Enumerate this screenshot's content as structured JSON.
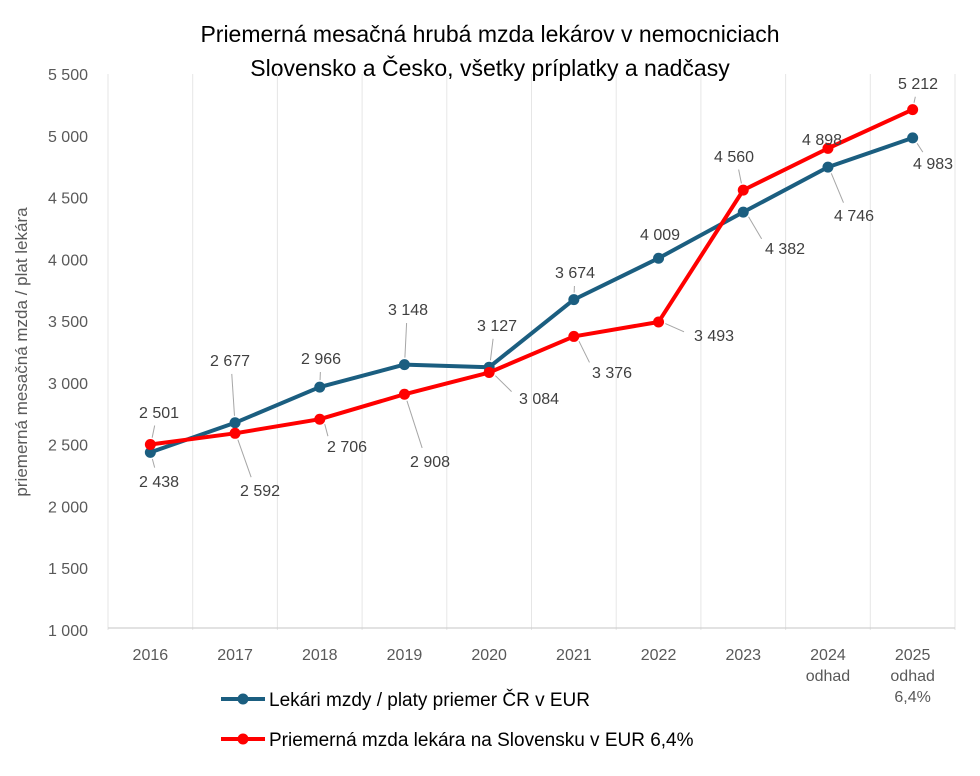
{
  "chart_data": {
    "type": "line",
    "title": [
      "Priemerná mesačná hrubá mzda lekárov v nemocniciach",
      "Slovensko a Česko, všetky príplatky a nadčasy"
    ],
    "xlabel": "",
    "ylabel": "priemerná mesačná mzda / plat lekára",
    "categories": [
      [
        "2016"
      ],
      [
        "2017"
      ],
      [
        "2018"
      ],
      [
        "2019"
      ],
      [
        "2020"
      ],
      [
        "2021"
      ],
      [
        "2022"
      ],
      [
        "2023"
      ],
      [
        "2024",
        "odhad"
      ],
      [
        "2025",
        "odhad",
        "6,4%"
      ]
    ],
    "ylim": [
      1000,
      5500
    ],
    "yticks": [
      1000,
      1500,
      2000,
      2500,
      3000,
      3500,
      4000,
      4500,
      5000,
      5500
    ],
    "ytick_labels": [
      "1 000",
      "1 500",
      "2 000",
      "2 500",
      "3 000",
      "3 500",
      "4 000",
      "4 500",
      "5 000",
      "5 500"
    ],
    "grid": "vertical",
    "legend_position": "bottom",
    "series": [
      {
        "name": "Lekári mzdy / platy priemer ČR v EUR",
        "color": "#1b5e80",
        "values": [
          2438,
          2677,
          2966,
          3148,
          3127,
          3674,
          4009,
          4382,
          4746,
          4983
        ],
        "labels": [
          "2 438",
          "2 677",
          "2 966",
          "3 148",
          "3 127",
          "3 674",
          "4 009",
          "4 382",
          "4 746",
          "4 983"
        ]
      },
      {
        "name": "Priemerná mzda lekára na Slovensku v EUR 6,4%",
        "color": "#ff0000",
        "values": [
          2501,
          2592,
          2706,
          2908,
          3084,
          3376,
          3493,
          4560,
          4898,
          5212
        ],
        "labels": [
          "2 501",
          "2 592",
          "2 706",
          "2 908",
          "3 084",
          "3 376",
          "3 493",
          "4 560",
          "4 898",
          "5 212"
        ]
      }
    ]
  }
}
